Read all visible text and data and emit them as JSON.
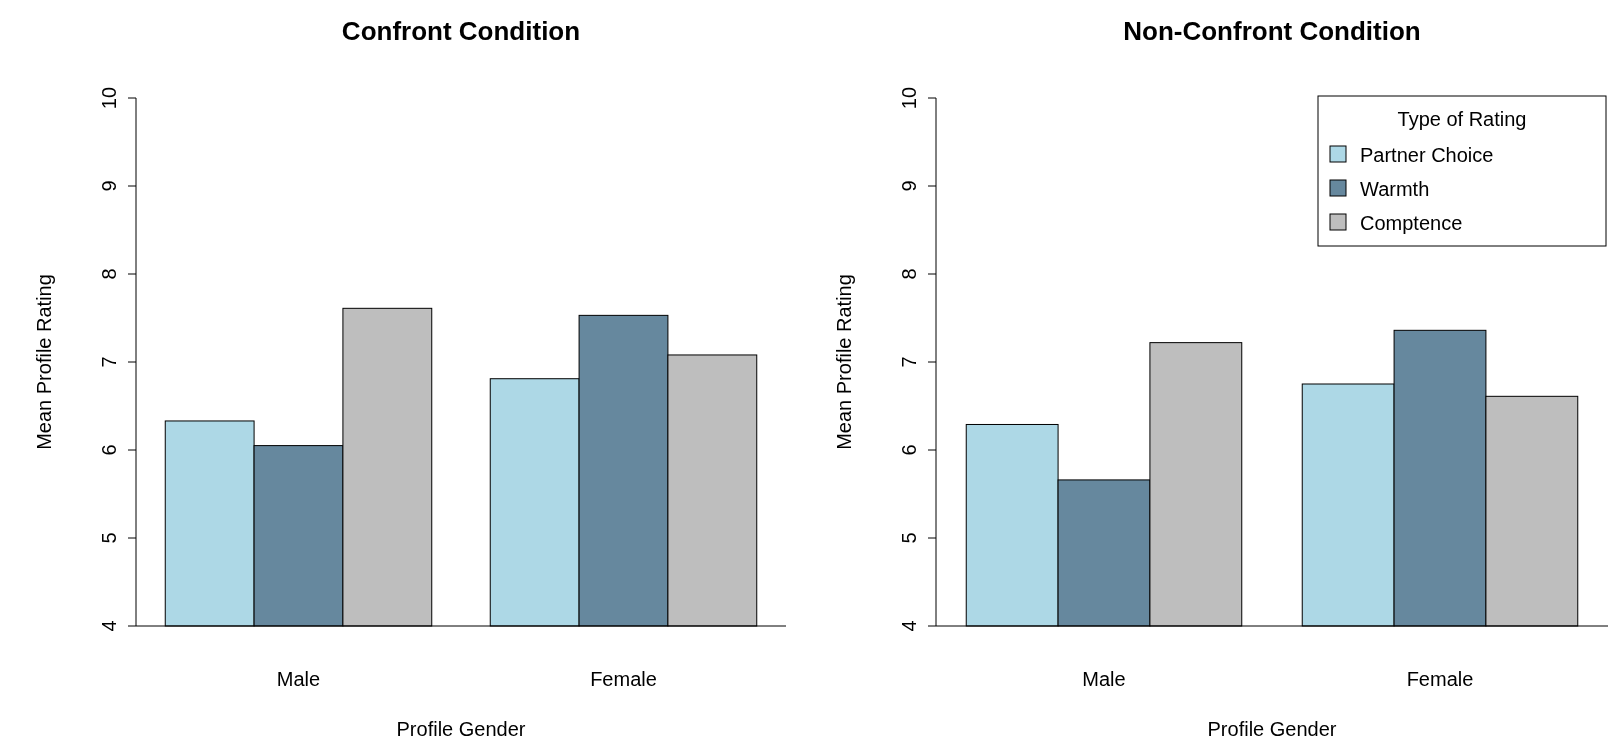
{
  "chart_data": [
    {
      "type": "bar",
      "title": "Confront Condition",
      "xlabel": "Profile Gender",
      "ylabel": "Mean Profile Rating",
      "categories": [
        "Male",
        "Female"
      ],
      "ylim": [
        4,
        10
      ],
      "yticks": [
        4,
        5,
        6,
        7,
        8,
        9,
        10
      ],
      "grid": false,
      "legend": false,
      "series": [
        {
          "color": "#add8e6",
          "values": [
            6.33,
            6.81
          ]
        },
        {
          "color": "#66889e",
          "values": [
            6.05,
            7.53
          ]
        },
        {
          "color": "#bebebe",
          "values": [
            7.61,
            7.08
          ]
        }
      ]
    },
    {
      "type": "bar",
      "title": "Non-Confront Condition",
      "xlabel": "Profile Gender",
      "ylabel": "Mean Profile Rating",
      "legend_title": "Type of Rating",
      "categories": [
        "Male",
        "Female"
      ],
      "ylim": [
        4,
        10
      ],
      "yticks": [
        4,
        5,
        6,
        7,
        8,
        9,
        10
      ],
      "grid": false,
      "legend": "top right",
      "series": [
        {
          "name": "Partner Choice",
          "color": "#add8e6",
          "values": [
            6.29,
            6.75
          ]
        },
        {
          "name": "Warmth",
          "color": "#66889e",
          "values": [
            5.66,
            7.36
          ]
        },
        {
          "name": "Comptence",
          "color": "#bebebe",
          "values": [
            7.22,
            6.61
          ]
        }
      ]
    }
  ]
}
